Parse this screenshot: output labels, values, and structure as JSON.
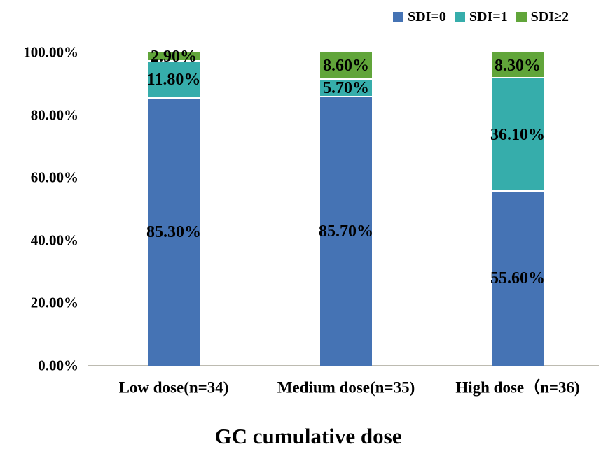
{
  "legend": {
    "items": [
      {
        "label": "SDI=0",
        "color": "#4573b4"
      },
      {
        "label": "SDI=1",
        "color": "#36adab"
      },
      {
        "label": "SDI≥2",
        "color": "#61a53a"
      }
    ]
  },
  "chart_data": {
    "type": "bar",
    "subtype": "stacked-percent",
    "title": "GC cumulative dose",
    "xlabel": "GC cumulative dose",
    "ylabel": "",
    "categories": [
      "Low dose(n=34)",
      "Medium dose(n=35)",
      "High dose（n=36)"
    ],
    "series": [
      {
        "name": "SDI=0",
        "color": "#4573b4",
        "values": [
          85.3,
          85.7,
          55.6
        ]
      },
      {
        "name": "SDI=1",
        "color": "#36adab",
        "values": [
          11.8,
          5.7,
          36.1
        ]
      },
      {
        "name": "SDI≥2",
        "color": "#61a53a",
        "values": [
          2.9,
          8.6,
          8.3
        ]
      }
    ],
    "data_labels": [
      [
        "85.30%",
        "85.70%",
        "55.60%"
      ],
      [
        "11.80%",
        "5.70%",
        "36.10%"
      ],
      [
        "2.90%",
        "8.60%",
        "8.30%"
      ]
    ],
    "yticks": [
      "100.00%",
      "80.00%",
      "60.00%",
      "40.00%",
      "20.00%",
      "0.00%"
    ],
    "ylim": [
      0,
      100
    ],
    "grid": "off",
    "legend_position": "top-right",
    "axis_line_color": "#bdbbb1",
    "segment_gap_color": "#ffffff"
  }
}
